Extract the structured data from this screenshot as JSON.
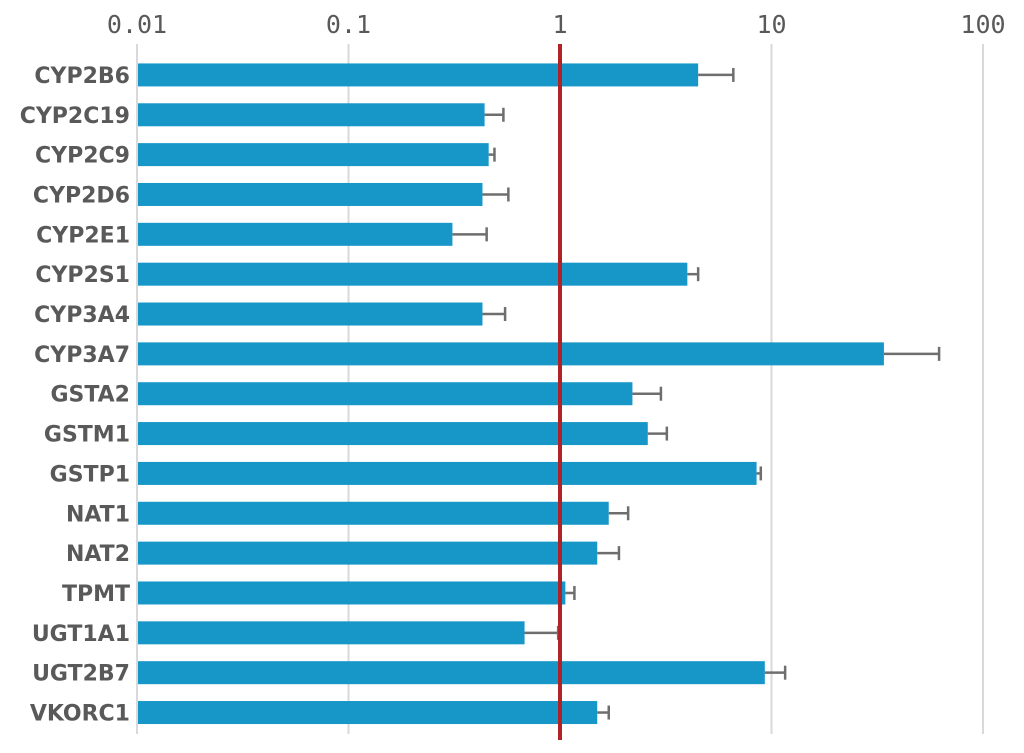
{
  "chart_data": {
    "type": "bar",
    "orientation": "horizontal",
    "x_scale": "log10",
    "title": "",
    "xlabel": "",
    "ylabel": "",
    "xlim": [
      0.01,
      100
    ],
    "x_ticks": [
      {
        "label": "0.01",
        "value": 0.01
      },
      {
        "label": "0.1",
        "value": 0.1
      },
      {
        "label": "1",
        "value": 1
      },
      {
        "label": "10",
        "value": 10
      },
      {
        "label": "100",
        "value": 100
      }
    ],
    "grid": true,
    "legend": false,
    "reference_line": {
      "value": 1
    },
    "categories": [
      "CYP2B6",
      "CYP2C19",
      "CYP2C9",
      "CYP2D6",
      "CYP2E1",
      "CYP2S1",
      "CYP3A4",
      "CYP3A7",
      "GSTA2",
      "GSTM1",
      "GSTP1",
      "NAT1",
      "NAT2",
      "TPMT",
      "UGT1A1",
      "UGT2B7",
      "VKORC1"
    ],
    "values": [
      4.5,
      0.44,
      0.46,
      0.43,
      0.31,
      4.0,
      0.43,
      34.0,
      2.2,
      2.6,
      8.5,
      1.7,
      1.5,
      1.06,
      0.68,
      9.3,
      1.5
    ],
    "error_high": [
      6.6,
      0.54,
      0.49,
      0.57,
      0.45,
      4.5,
      0.55,
      62.0,
      3.0,
      3.2,
      8.9,
      2.1,
      1.9,
      1.17,
      0.98,
      11.6,
      1.7
    ],
    "colors": {
      "bar": "#1797C8",
      "reference_line": "#B12227",
      "gridline": "#D9D9D9",
      "error_bar": "#6E6E6E",
      "text": "#595959",
      "background": "#FFFFFF"
    }
  }
}
